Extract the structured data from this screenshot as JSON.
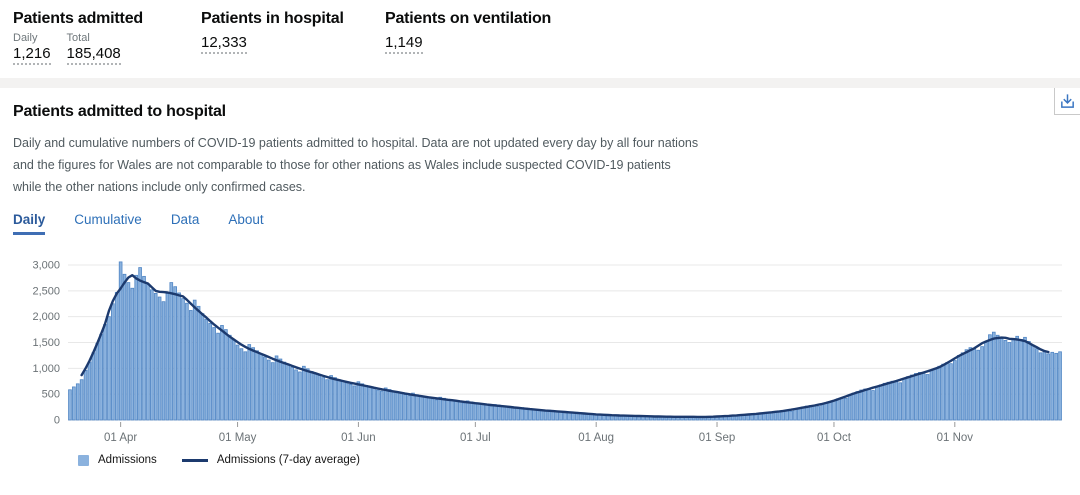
{
  "summary": {
    "cards": [
      {
        "title": "Patients admitted",
        "metrics": [
          {
            "label": "Daily",
            "value": "1,216"
          },
          {
            "label": "Total",
            "value": "185,408"
          }
        ]
      },
      {
        "title": "Patients in hospital",
        "metrics": [
          {
            "label": "",
            "value": "12,333"
          }
        ]
      },
      {
        "title": "Patients on ventilation",
        "metrics": [
          {
            "label": "",
            "value": "1,149"
          }
        ]
      }
    ]
  },
  "card": {
    "title": "Patients admitted to hospital",
    "description": "Daily and cumulative numbers of COVID-19 patients admitted to hospital. Data are not updated every day by all four nations and the figures for Wales are not comparable to those for other nations as Wales include suspected COVID-19 patients while the other nations include only confirmed cases.",
    "tabs": [
      {
        "label": "Daily",
        "active": true
      },
      {
        "label": "Cumulative",
        "active": false
      },
      {
        "label": "Data",
        "active": false
      },
      {
        "label": "About",
        "active": false
      }
    ],
    "download_icon": "download-icon"
  },
  "chart_data": {
    "type": "bar",
    "title": "Patients admitted to hospital (daily)",
    "start_date": "2020-03-19",
    "end_date": "2020-11-28",
    "x_tick_labels": [
      "01 Apr",
      "01 May",
      "01 Jun",
      "01 Jul",
      "01 Aug",
      "01 Sep",
      "01 Oct",
      "01 Nov"
    ],
    "x_tick_indices": [
      13,
      43,
      74,
      104,
      135,
      166,
      196,
      227
    ],
    "y_ticks": [
      {
        "v": 0,
        "label": "0"
      },
      {
        "v": 500,
        "label": "500"
      },
      {
        "v": 1000,
        "label": "1,000"
      },
      {
        "v": 1500,
        "label": "1,500"
      },
      {
        "v": 2000,
        "label": "2,000"
      },
      {
        "v": 2500,
        "label": "2,500"
      },
      {
        "v": 3000,
        "label": "3,000"
      }
    ],
    "ylim": [
      0,
      3200
    ],
    "grid": "horizontal",
    "legend_position": "bottom-left",
    "colors": {
      "bar_fill": "#8bb2de",
      "bar_edge": "#5186c4",
      "line": "#1c3a6e",
      "gridline": "#e8e8e8",
      "axis_text": "#6b7276"
    },
    "series": [
      {
        "name": "Admissions",
        "type": "bar",
        "values": [
          585,
          640,
          700,
          780,
          960,
          1120,
          1300,
          1480,
          1660,
          1850,
          2000,
          2250,
          2470,
          3060,
          2820,
          2660,
          2550,
          2800,
          2950,
          2780,
          2620,
          2520,
          2450,
          2380,
          2290,
          2450,
          2660,
          2580,
          2460,
          2350,
          2260,
          2120,
          2320,
          2200,
          2060,
          1950,
          1870,
          1790,
          1680,
          1830,
          1750,
          1640,
          1550,
          1450,
          1380,
          1320,
          1460,
          1400,
          1340,
          1280,
          1220,
          1160,
          1110,
          1240,
          1180,
          1120,
          1070,
          1020,
          970,
          930,
          1040,
          990,
          940,
          900,
          860,
          820,
          780,
          860,
          820,
          780,
          750,
          720,
          690,
          660,
          740,
          700,
          670,
          640,
          610,
          580,
          560,
          620,
          590,
          560,
          540,
          510,
          490,
          470,
          520,
          490,
          470,
          450,
          430,
          410,
          390,
          440,
          420,
          400,
          380,
          360,
          350,
          330,
          370,
          350,
          330,
          310,
          300,
          290,
          270,
          300,
          290,
          270,
          260,
          250,
          230,
          220,
          240,
          230,
          220,
          200,
          190,
          180,
          170,
          190,
          180,
          170,
          160,
          150,
          140,
          130,
          150,
          140,
          130,
          120,
          110,
          100,
          95,
          110,
          100,
          95,
          90,
          85,
          80,
          75,
          90,
          85,
          80,
          75,
          70,
          65,
          60,
          75,
          70,
          65,
          65,
          60,
          55,
          55,
          70,
          65,
          65,
          60,
          60,
          55,
          50,
          60,
          70,
          75,
          80,
          85,
          80,
          75,
          95,
          100,
          110,
          120,
          125,
          120,
          115,
          140,
          150,
          160,
          175,
          185,
          180,
          170,
          210,
          230,
          250,
          270,
          280,
          270,
          260,
          310,
          330,
          350,
          380,
          410,
          430,
          420,
          480,
          520,
          550,
          580,
          600,
          590,
          570,
          650,
          680,
          710,
          730,
          750,
          740,
          720,
          800,
          840,
          870,
          900,
          920,
          900,
          880,
          960,
          1000,
          1040,
          1080,
          1110,
          1090,
          1150,
          1250,
          1300,
          1360,
          1400,
          1380,
          1350,
          1420,
          1500,
          1650,
          1700,
          1640,
          1580,
          1540,
          1500,
          1560,
          1620,
          1560,
          1600,
          1520,
          1450,
          1380,
          1300,
          1330,
          1280,
          1310,
          1290,
          1320
        ]
      },
      {
        "name": "Admissions (7-day average)",
        "type": "line",
        "derived": "centered 7-day moving average of Admissions"
      }
    ]
  }
}
